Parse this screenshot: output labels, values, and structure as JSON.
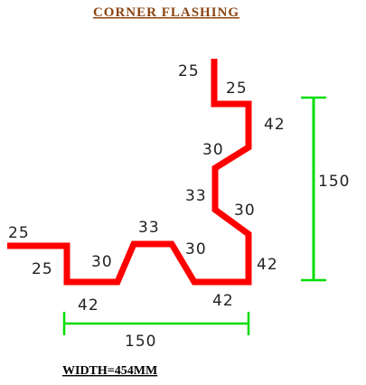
{
  "title": "CORNER FLASHING",
  "width_label": "WIDTH=454MM",
  "colors": {
    "profile": "#ff0000",
    "dimension": "#00dd00",
    "title": "#8b4513"
  },
  "segment_labels": {
    "top_lip": "25",
    "top_return": "25",
    "upper_vertical": "42",
    "upper_diagonal": "30",
    "middle_vertical": "33",
    "lower_diagonal": "30",
    "lower_vertical": "42",
    "left_lip": "25",
    "left_return": "25",
    "bottom_left": "42",
    "left_slope": "30",
    "top_flat": "33",
    "right_slope": "30",
    "bottom_right": "42"
  },
  "dimensions": {
    "height": "150",
    "width": "150"
  }
}
